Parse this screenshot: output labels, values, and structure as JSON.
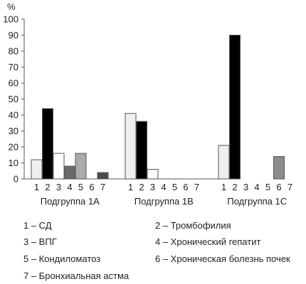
{
  "chart_data": {
    "type": "bar",
    "ylabel": "%",
    "ylim": [
      0,
      100
    ],
    "yticks": [
      0,
      10,
      20,
      30,
      40,
      50,
      60,
      70,
      80,
      90,
      100
    ],
    "grid": false,
    "categories": [
      "1",
      "2",
      "3",
      "4",
      "5",
      "6",
      "7"
    ],
    "groups": [
      {
        "label": "Подгруппа 1А",
        "values": [
          12,
          44,
          16,
          8,
          16,
          0,
          4
        ]
      },
      {
        "label": "Подгруппа 1В",
        "values": [
          41,
          36,
          6,
          0,
          0,
          0,
          0
        ]
      },
      {
        "label": "Подгруппа 1С",
        "values": [
          21,
          90,
          0,
          0,
          0,
          14,
          0
        ]
      }
    ],
    "series_colors": [
      "#efefef",
      "#000000",
      "#ffffff",
      "#6a6a6a",
      "#aaaaaa",
      "#8c8c8c",
      "#4a4a4a"
    ],
    "legend": [
      "1 – СД",
      "2 – Тромбофилия",
      "3 – ВПГ",
      "4 – Хронический гепатит",
      "5 – Кондиломатоз",
      "6 – Хроническая болезнь почек",
      "7 – Бронхиальная астма"
    ]
  }
}
